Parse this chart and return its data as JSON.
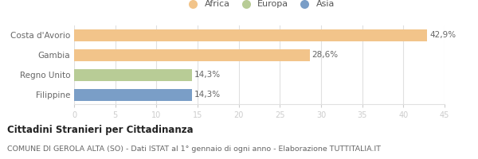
{
  "categories": [
    "Costa d'Avorio",
    "Gambia",
    "Regno Unito",
    "Filippine"
  ],
  "values": [
    42.9,
    28.6,
    14.3,
    14.3
  ],
  "labels": [
    "42,9%",
    "28,6%",
    "14,3%",
    "14,3%"
  ],
  "colors": [
    "#f2c48a",
    "#f2c48a",
    "#b8cc96",
    "#7a9ec7"
  ],
  "legend_items": [
    {
      "label": "Africa",
      "color": "#f2c48a"
    },
    {
      "label": "Europa",
      "color": "#b8cc96"
    },
    {
      "label": "Asia",
      "color": "#7a9ec7"
    }
  ],
  "xlim": [
    0,
    45
  ],
  "xticks": [
    0,
    5,
    10,
    15,
    20,
    25,
    30,
    35,
    40,
    45
  ],
  "title_bold": "Cittadini Stranieri per Cittadinanza",
  "subtitle": "COMUNE DI GEROLA ALTA (SO) - Dati ISTAT al 1° gennaio di ogni anno - Elaborazione TUTTITALIA.IT",
  "background_color": "#ffffff",
  "grid_color": "#e0e0e0",
  "bar_height": 0.6,
  "title_fontsize": 8.5,
  "subtitle_fontsize": 6.8,
  "label_fontsize": 7.5,
  "tick_fontsize": 7.0,
  "legend_fontsize": 8.0,
  "ytick_fontsize": 7.5
}
